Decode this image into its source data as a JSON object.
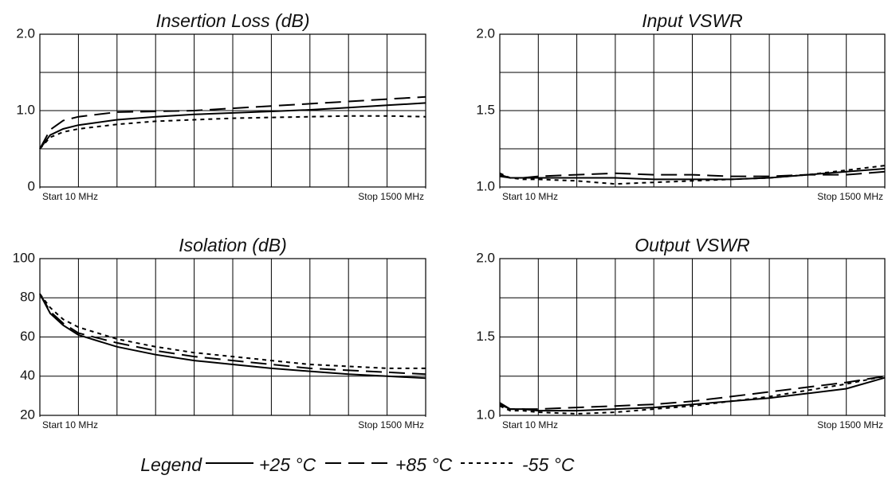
{
  "legend_title": "Legend",
  "chart_data": [
    {
      "type": "line",
      "title": "Insertion Loss (dB)",
      "x": [
        10,
        50,
        100,
        159,
        308,
        457,
        606,
        755,
        904,
        1053,
        1202,
        1351,
        1500
      ],
      "xlim": [
        10,
        1500
      ],
      "xticks": [
        {
          "value": 10,
          "label": "Start 10 MHz"
        },
        {
          "value": 1500,
          "label": "Stop 1500 MHz"
        }
      ],
      "xgrid": [
        159,
        308,
        457,
        606,
        755,
        904,
        1053,
        1202,
        1351
      ],
      "ylim": [
        0,
        2
      ],
      "yticks": [
        0,
        {
          "value": 1,
          "label": "1.0"
        },
        {
          "value": 2,
          "label": "2.0"
        }
      ],
      "ygrid": [
        0.5,
        1.5
      ],
      "series": [
        {
          "name": "+25 °C",
          "color": "#000000",
          "line_style": "solid",
          "values": [
            0.5,
            0.68,
            0.76,
            0.81,
            0.88,
            0.92,
            0.95,
            0.97,
            0.99,
            1.01,
            1.04,
            1.07,
            1.1
          ]
        },
        {
          "name": "+85 °C",
          "color": "#000000",
          "line_style": "dashed",
          "values": [
            0.5,
            0.75,
            0.87,
            0.92,
            0.98,
            0.99,
            1.0,
            1.03,
            1.06,
            1.09,
            1.12,
            1.15,
            1.18
          ]
        },
        {
          "name": "-55 °C",
          "color": "#000000",
          "line_style": "dotted",
          "values": [
            0.5,
            0.65,
            0.72,
            0.76,
            0.82,
            0.86,
            0.88,
            0.9,
            0.91,
            0.92,
            0.93,
            0.93,
            0.92
          ]
        }
      ]
    },
    {
      "type": "line",
      "title": "Input VSWR",
      "x": [
        10,
        50,
        100,
        159,
        308,
        457,
        606,
        755,
        904,
        1053,
        1202,
        1351,
        1500
      ],
      "xlim": [
        10,
        1500
      ],
      "xticks": [
        {
          "value": 10,
          "label": "Start 10 MHz"
        },
        {
          "value": 1500,
          "label": "Stop 1500 MHz"
        }
      ],
      "xgrid": [
        159,
        308,
        457,
        606,
        755,
        904,
        1053,
        1202,
        1351
      ],
      "ylim": [
        1,
        2
      ],
      "yticks": [
        {
          "value": 1,
          "label": "1.0"
        },
        1.5,
        {
          "value": 2,
          "label": "2.0"
        }
      ],
      "ygrid": [
        1.25,
        1.75
      ],
      "series": [
        {
          "name": "+25 °C",
          "color": "#000000",
          "line_style": "solid",
          "values": [
            1.07,
            1.06,
            1.06,
            1.06,
            1.06,
            1.06,
            1.05,
            1.05,
            1.05,
            1.06,
            1.08,
            1.1,
            1.12
          ]
        },
        {
          "name": "+85 °C",
          "color": "#000000",
          "line_style": "dashed",
          "values": [
            1.08,
            1.06,
            1.06,
            1.07,
            1.08,
            1.09,
            1.08,
            1.08,
            1.07,
            1.07,
            1.08,
            1.08,
            1.1
          ]
        },
        {
          "name": "-55 °C",
          "color": "#000000",
          "line_style": "dotted",
          "values": [
            1.09,
            1.06,
            1.05,
            1.05,
            1.04,
            1.02,
            1.03,
            1.04,
            1.05,
            1.06,
            1.08,
            1.11,
            1.14
          ]
        }
      ]
    },
    {
      "type": "line",
      "title": "Isolation (dB)",
      "x": [
        10,
        50,
        100,
        159,
        308,
        457,
        606,
        755,
        904,
        1053,
        1202,
        1351,
        1500
      ],
      "xlim": [
        10,
        1500
      ],
      "xticks": [
        {
          "value": 10,
          "label": "Start 10 MHz"
        },
        {
          "value": 1500,
          "label": "Stop 1500 MHz"
        }
      ],
      "xgrid": [
        159,
        308,
        457,
        606,
        755,
        904,
        1053,
        1202,
        1351
      ],
      "ylim": [
        20,
        100
      ],
      "yticks": [
        20,
        40,
        60,
        80,
        100
      ],
      "ygrid": [],
      "series": [
        {
          "name": "+25 °C",
          "color": "#000000",
          "line_style": "solid",
          "values": [
            82,
            72,
            66,
            61,
            55,
            51,
            48,
            46,
            44,
            42.5,
            41,
            40,
            39
          ]
        },
        {
          "name": "+85 °C",
          "color": "#000000",
          "line_style": "dashed",
          "values": [
            82,
            73,
            67,
            62,
            57,
            53,
            50,
            48,
            46,
            44,
            43,
            42,
            41
          ]
        },
        {
          "name": "-55 °C",
          "color": "#000000",
          "line_style": "dotted",
          "values": [
            82,
            75,
            69,
            65,
            59,
            55,
            52,
            50,
            48,
            46,
            45,
            44,
            44
          ]
        }
      ]
    },
    {
      "type": "line",
      "title": "Output VSWR",
      "x": [
        10,
        50,
        100,
        159,
        308,
        457,
        606,
        755,
        904,
        1053,
        1202,
        1351,
        1500
      ],
      "xlim": [
        10,
        1500
      ],
      "xticks": [
        {
          "value": 10,
          "label": "Start 10 MHz"
        },
        {
          "value": 1500,
          "label": "Stop 1500 MHz"
        }
      ],
      "xgrid": [
        159,
        308,
        457,
        606,
        755,
        904,
        1053,
        1202,
        1351
      ],
      "ylim": [
        1,
        2
      ],
      "yticks": [
        {
          "value": 1,
          "label": "1.0"
        },
        1.5,
        {
          "value": 2,
          "label": "2.0"
        }
      ],
      "ygrid": [
        1.25,
        1.75
      ],
      "series": [
        {
          "name": "+25 °C",
          "color": "#000000",
          "line_style": "solid",
          "values": [
            1.08,
            1.04,
            1.04,
            1.03,
            1.03,
            1.04,
            1.05,
            1.07,
            1.09,
            1.11,
            1.14,
            1.17,
            1.24
          ]
        },
        {
          "name": "+85 °C",
          "color": "#000000",
          "line_style": "dashed",
          "values": [
            1.07,
            1.04,
            1.04,
            1.04,
            1.05,
            1.06,
            1.07,
            1.09,
            1.12,
            1.15,
            1.18,
            1.21,
            1.25
          ]
        },
        {
          "name": "-55 °C",
          "color": "#000000",
          "line_style": "dotted",
          "values": [
            1.06,
            1.03,
            1.03,
            1.02,
            1.01,
            1.02,
            1.04,
            1.06,
            1.09,
            1.12,
            1.16,
            1.2,
            1.25
          ]
        }
      ]
    }
  ]
}
